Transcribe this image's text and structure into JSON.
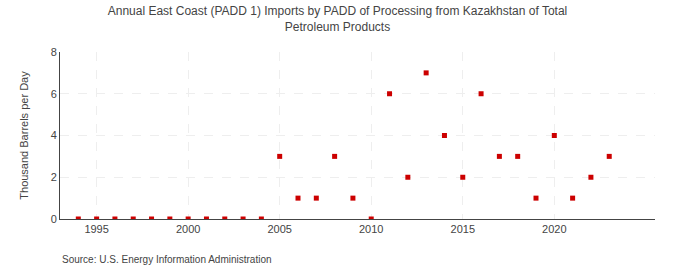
{
  "chart_data": {
    "type": "scatter",
    "title": "Annual East Coast (PADD 1) Imports by PADD of Processing from Kazakhstan of Total\nPetroleum Products",
    "ylabel": "Thousand Barrels per Day",
    "annotations": [
      "Source: U.S. Energy Information Administration"
    ],
    "x": [
      1994,
      1995,
      1996,
      1997,
      1998,
      1999,
      2000,
      2001,
      2002,
      2003,
      2004,
      2005,
      2006,
      2007,
      2008,
      2009,
      2010,
      2011,
      2012,
      2013,
      2014,
      2015,
      2016,
      2017,
      2018,
      2019,
      2020,
      2021,
      2022,
      2023
    ],
    "values": [
      0,
      0,
      0,
      0,
      0,
      0,
      0,
      0,
      0,
      0,
      0,
      3,
      1,
      1,
      3,
      1,
      0,
      6,
      2,
      7,
      4,
      2,
      6,
      3,
      3,
      1,
      4,
      1,
      2,
      3
    ],
    "color": "#cc0000",
    "marker": "square",
    "xlim": [
      1993,
      2025.5
    ],
    "ylim": [
      0,
      8
    ],
    "xticks": [
      1995,
      2000,
      2005,
      2010,
      2015,
      2020
    ],
    "yticks": [
      0,
      2,
      4,
      6,
      8
    ],
    "grid": true
  }
}
